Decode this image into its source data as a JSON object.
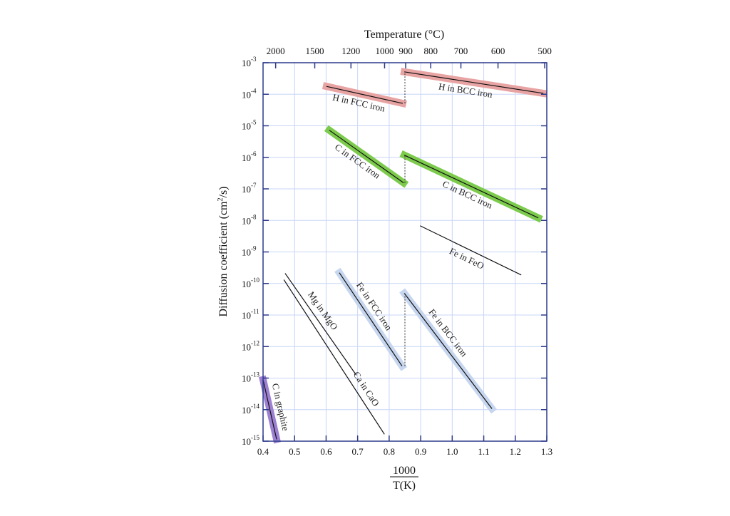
{
  "chart_data": {
    "type": "line",
    "title": "Temperature (°C)",
    "xlabel_numerator": "1000",
    "xlabel_denominator": "T(K)",
    "ylabel": "Diffusion coefficient (cm²/s)",
    "ylabel_parts": {
      "pre": "Diffusion coefficient (cm",
      "sup": "2",
      "post": "/s)"
    },
    "x_scale": "linear",
    "y_scale": "log10",
    "xlim": [
      0.4,
      1.3
    ],
    "ylim_log10": [
      -15,
      -3
    ],
    "grid": true,
    "x_ticks": [
      "0.4",
      "0.5",
      "0.6",
      "0.7",
      "0.8",
      "0.9",
      "1.0",
      "1.1",
      "1.2",
      "1.3"
    ],
    "y_ticks": [
      {
        "base": "10",
        "exp": "-3"
      },
      {
        "base": "10",
        "exp": "-4"
      },
      {
        "base": "10",
        "exp": "-5"
      },
      {
        "base": "10",
        "exp": "-6"
      },
      {
        "base": "10",
        "exp": "-7"
      },
      {
        "base": "10",
        "exp": "-8"
      },
      {
        "base": "10",
        "exp": "-9"
      },
      {
        "base": "10",
        "exp": "-10"
      },
      {
        "base": "10",
        "exp": "-11"
      },
      {
        "base": "10",
        "exp": "-12"
      },
      {
        "base": "10",
        "exp": "-13"
      },
      {
        "base": "10",
        "exp": "-14"
      },
      {
        "base": "10",
        "exp": "-15"
      }
    ],
    "top_axis_ticks_celsius": [
      "2000",
      "1500",
      "1200",
      "1000",
      "900",
      "800",
      "700",
      "600",
      "500"
    ],
    "series": [
      {
        "name": "H in FCC iron",
        "x": [
          0.601,
          0.843
        ],
        "log10_D": [
          -3.75,
          -4.29
        ],
        "highlight": "#e8a3a3"
      },
      {
        "name": "H in BCC iron",
        "x": [
          0.848,
          1.289
        ],
        "log10_D": [
          -3.29,
          -3.97
        ],
        "highlight": "#e8a3a3"
      },
      {
        "name": "C in FCC iron",
        "x": [
          0.61,
          0.846
        ],
        "log10_D": [
          -5.14,
          -6.81
        ],
        "highlight": "#7ccb4c"
      },
      {
        "name": "C in BCC iron",
        "x": [
          0.848,
          1.273
        ],
        "log10_D": [
          -5.93,
          -7.92
        ],
        "highlight": "#7ccb4c"
      },
      {
        "name": "Fe in FeO",
        "x": [
          0.898,
          1.219
        ],
        "log10_D": [
          -8.17,
          -9.73
        ],
        "highlight": null
      },
      {
        "name": "Mg in MgO",
        "x": [
          0.47,
          0.696
        ],
        "log10_D": [
          -9.68,
          -12.91
        ],
        "highlight": null
      },
      {
        "name": "Ca in CaO",
        "x": [
          0.466,
          0.785
        ],
        "log10_D": [
          -9.88,
          -14.78
        ],
        "highlight": null
      },
      {
        "name": "Fe in FCC iron",
        "x": [
          0.642,
          0.841
        ],
        "log10_D": [
          -9.66,
          -12.62
        ],
        "highlight": "#c7d6ef"
      },
      {
        "name": "Fe in BCC iron",
        "x": [
          0.848,
          1.126
        ],
        "log10_D": [
          -10.31,
          -13.97
        ],
        "highlight": "#c7d6ef"
      },
      {
        "name": "C in graphite",
        "x": [
          0.4,
          0.443
        ],
        "log10_D": [
          -13.05,
          -14.94
        ],
        "highlight": "#9d80d2"
      }
    ],
    "transitions": [
      {
        "x": 0.85,
        "log10_D": [
          -4.29,
          -3.29
        ]
      },
      {
        "x": 0.85,
        "log10_D": [
          -6.81,
          -5.93
        ]
      },
      {
        "x": 0.85,
        "log10_D": [
          -12.62,
          -10.31
        ]
      }
    ]
  },
  "colors": {
    "frame": "#2b3a8a",
    "grid": "#c9d5f7",
    "line": "#111111"
  }
}
